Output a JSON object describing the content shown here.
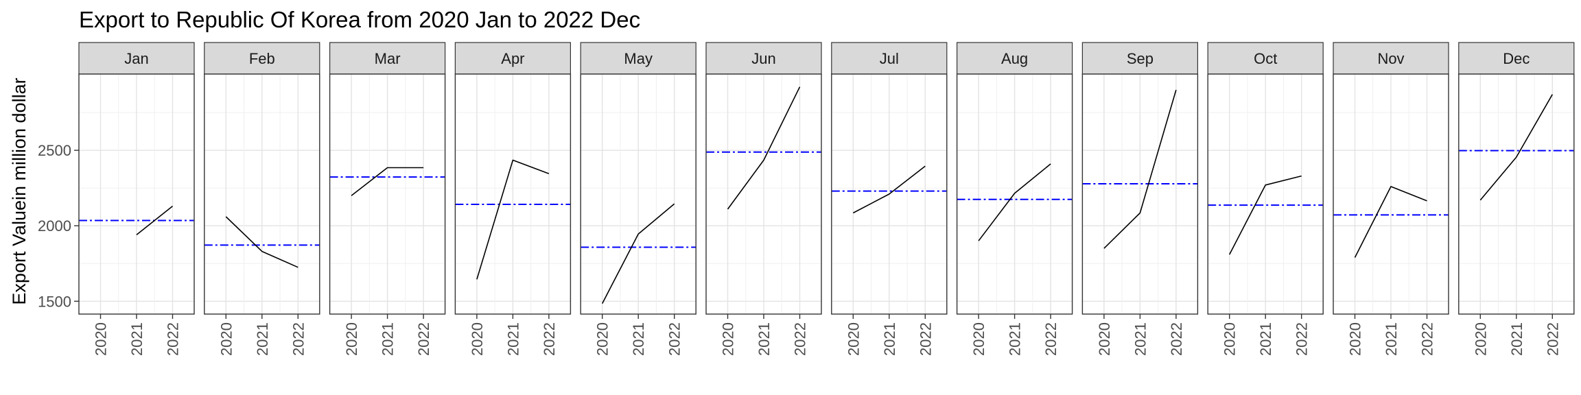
{
  "chart_data": {
    "type": "line",
    "title": "Export to Republic Of Korea from 2020 Jan to 2022 Dec",
    "xlabel": "",
    "ylabel": "Export Valuein million dollar",
    "x": [
      "2020",
      "2021",
      "2022"
    ],
    "yticks": [
      1500,
      2000,
      2500
    ],
    "ylim": [
      1415,
      3005
    ],
    "grid": true,
    "legend": "none",
    "line_color": "#000000",
    "mean_line_color": "#0000FF",
    "panels": [
      {
        "name": "Jan",
        "values": [
          null,
          1940,
          2130
        ],
        "mean": 2035
      },
      {
        "name": "Feb",
        "values": [
          2060,
          1830,
          1725
        ],
        "mean": 1872
      },
      {
        "name": "Mar",
        "values": [
          2200,
          2385,
          2385
        ],
        "mean": 2323
      },
      {
        "name": "Apr",
        "values": [
          1645,
          2435,
          2345
        ],
        "mean": 2142
      },
      {
        "name": "May",
        "values": [
          1485,
          1945,
          2145
        ],
        "mean": 1858
      },
      {
        "name": "Jun",
        "values": [
          2110,
          2435,
          2920
        ],
        "mean": 2488
      },
      {
        "name": "Jul",
        "values": [
          2085,
          2210,
          2395
        ],
        "mean": 2230
      },
      {
        "name": "Aug",
        "values": [
          1900,
          2215,
          2410
        ],
        "mean": 2175
      },
      {
        "name": "Sep",
        "values": [
          1850,
          2085,
          2900
        ],
        "mean": 2278
      },
      {
        "name": "Oct",
        "values": [
          1810,
          2270,
          2330
        ],
        "mean": 2137
      },
      {
        "name": "Nov",
        "values": [
          1790,
          2260,
          2165
        ],
        "mean": 2072
      },
      {
        "name": "Dec",
        "values": [
          2170,
          2455,
          2870
        ],
        "mean": 2498
      }
    ]
  }
}
